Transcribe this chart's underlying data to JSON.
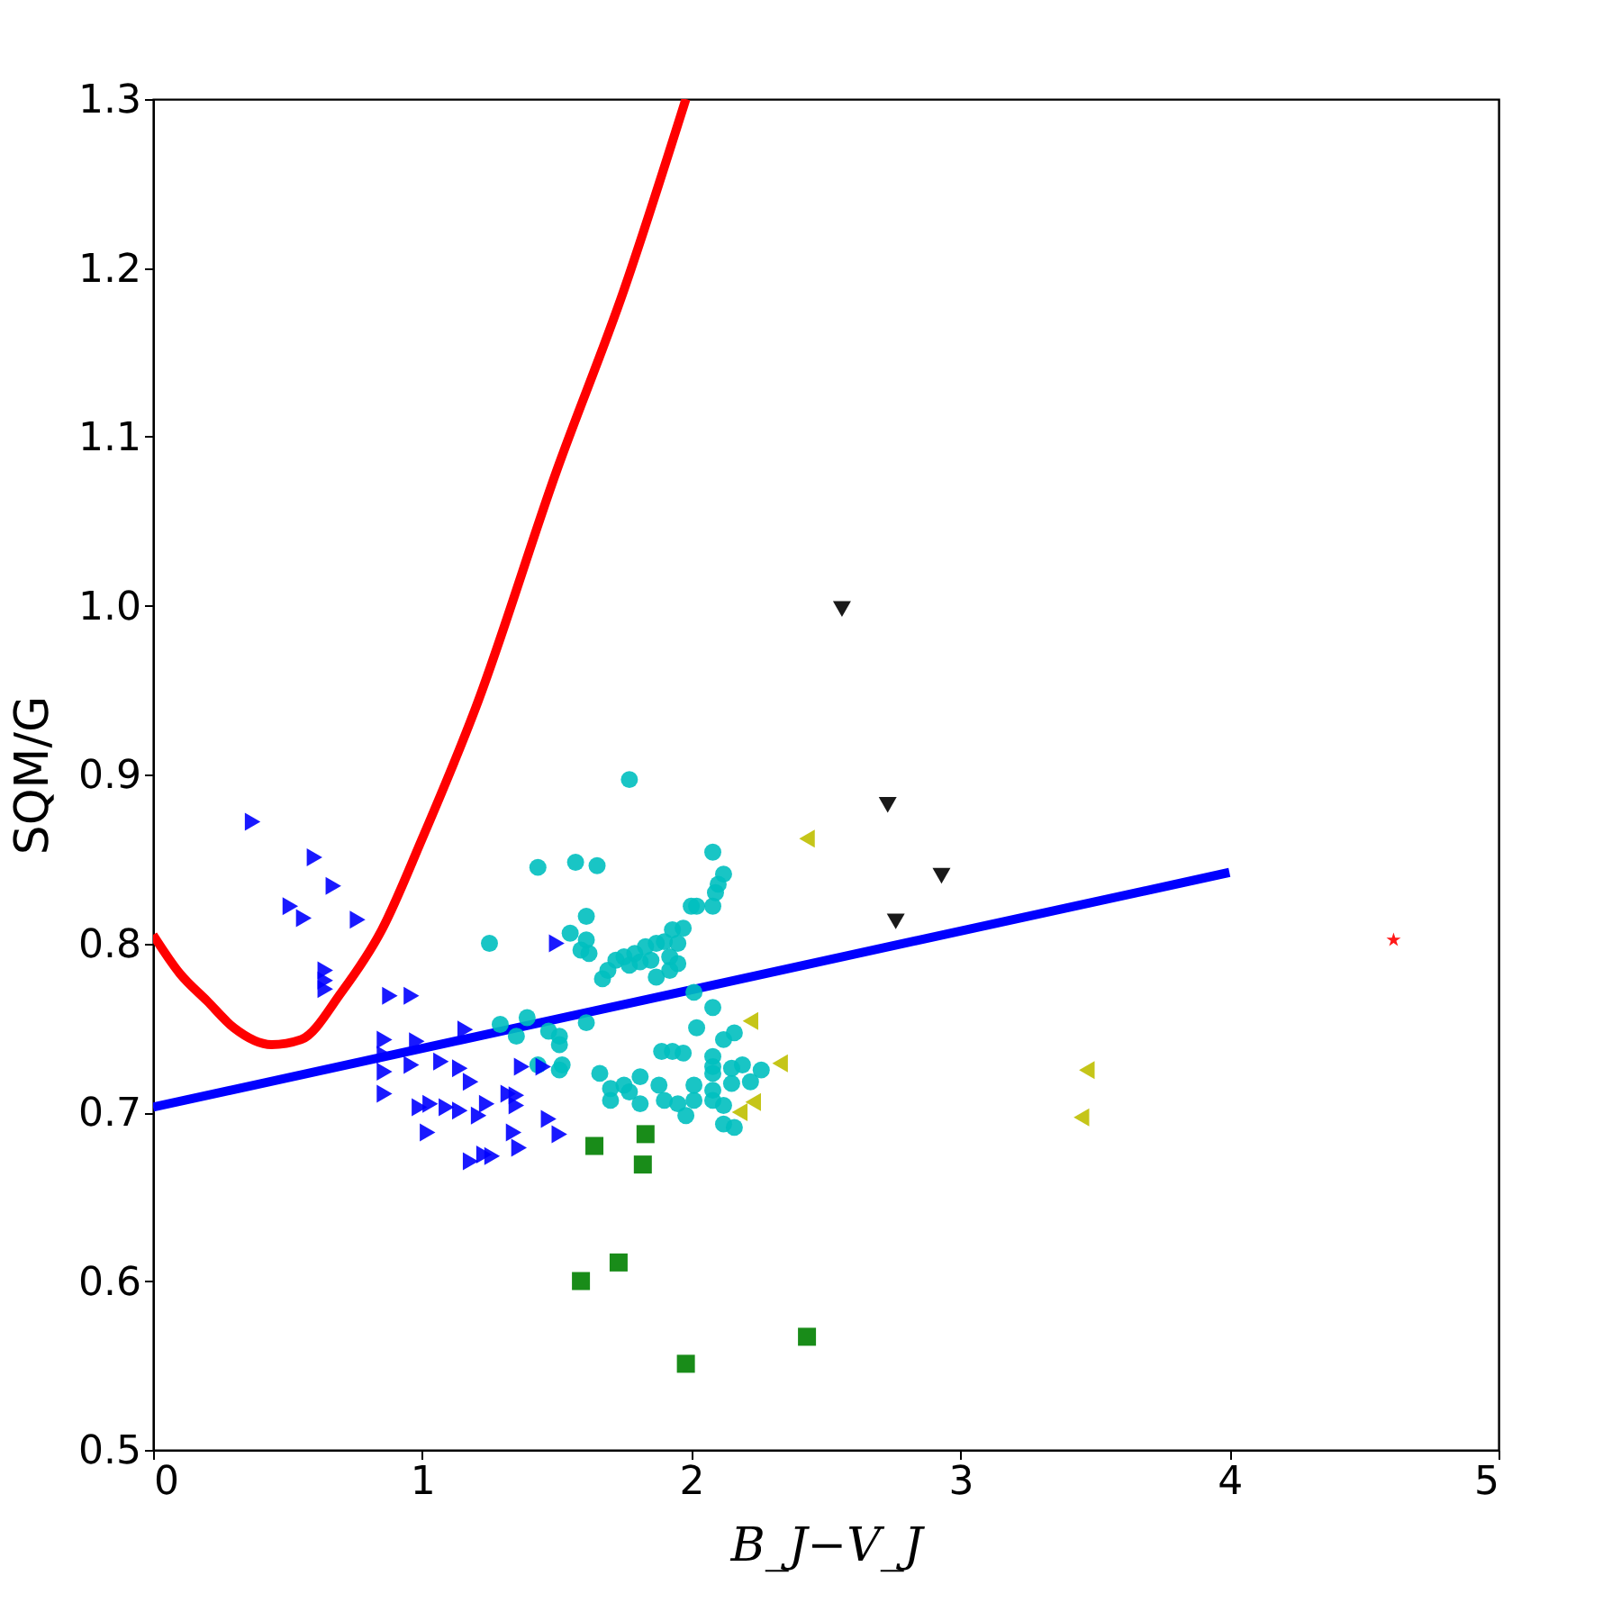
{
  "chart_data": {
    "type": "scatter",
    "xlabel": "B_J−V_J",
    "ylabel": "SQM/G",
    "xlim": [
      0,
      5
    ],
    "xticks": [
      0,
      1,
      2,
      3,
      4,
      5
    ],
    "ylim": [
      0.5,
      1.3
    ],
    "yticks": [
      0.5,
      0.6,
      0.7,
      0.8,
      0.9,
      {
        "value": 1,
        "label": "1.0"
      },
      1.1,
      1.2,
      1.3
    ],
    "grid": false,
    "legend": false,
    "series": [
      {
        "marker": "triangle-right",
        "color": "#0000ff",
        "x": [
          0.37,
          0.6,
          0.67,
          0.51,
          0.56,
          0.76,
          0.64,
          0.64,
          0.64,
          0.88,
          0.96,
          1.5,
          0.86,
          0.98,
          1.16,
          0.86,
          0.96,
          0.86,
          0.86,
          1.07,
          1.14,
          1.18,
          0.99,
          1.03,
          1.09,
          1.14,
          1.21,
          1.24,
          1.32,
          1.35,
          1.35,
          1.02,
          1.34,
          1.36,
          1.47,
          1.51,
          1.18,
          1.23,
          1.26,
          1.37,
          1.45
        ],
        "values": [
          0.872,
          0.851,
          0.834,
          0.822,
          0.815,
          0.814,
          0.784,
          0.778,
          0.773,
          0.769,
          0.769,
          0.8,
          0.743,
          0.742,
          0.749,
          0.734,
          0.728,
          0.724,
          0.711,
          0.73,
          0.726,
          0.718,
          0.703,
          0.705,
          0.703,
          0.701,
          0.698,
          0.705,
          0.711,
          0.71,
          0.704,
          0.688,
          0.688,
          0.679,
          0.696,
          0.687,
          0.671,
          0.675,
          0.674,
          0.727,
          0.727
        ]
      },
      {
        "marker": "circle",
        "color": "#00bfbf",
        "x": [
          1.77,
          1.43,
          1.57,
          1.65,
          2.08,
          2.12,
          2.1,
          2.09,
          2.08,
          2.0,
          2.02,
          1.25,
          1.61,
          1.55,
          1.61,
          1.59,
          1.62,
          1.97,
          1.93,
          1.95,
          1.9,
          1.87,
          1.83,
          1.79,
          1.75,
          1.72,
          1.77,
          1.81,
          1.85,
          1.92,
          1.95,
          1.92,
          1.87,
          1.69,
          1.67,
          2.01,
          2.08,
          2.02,
          1.29,
          1.35,
          1.39,
          1.47,
          1.51,
          1.51,
          1.61,
          1.43,
          1.52,
          1.51,
          1.89,
          1.93,
          1.97,
          2.12,
          2.16,
          2.08,
          2.08,
          2.08,
          2.19,
          2.15,
          2.26,
          2.22,
          2.15,
          2.08,
          1.66,
          1.7,
          1.75,
          1.81,
          1.77,
          1.7,
          1.81,
          1.88,
          1.9,
          1.95,
          1.98,
          2.01,
          2.01,
          2.12,
          2.12,
          2.16,
          2.08
        ],
        "values": [
          0.897,
          0.845,
          0.848,
          0.846,
          0.854,
          0.841,
          0.835,
          0.83,
          0.822,
          0.822,
          0.822,
          0.8,
          0.816,
          0.806,
          0.802,
          0.796,
          0.794,
          0.809,
          0.808,
          0.8,
          0.801,
          0.8,
          0.798,
          0.794,
          0.792,
          0.79,
          0.787,
          0.789,
          0.79,
          0.792,
          0.788,
          0.784,
          0.78,
          0.784,
          0.779,
          0.771,
          0.762,
          0.75,
          0.752,
          0.745,
          0.756,
          0.748,
          0.745,
          0.74,
          0.753,
          0.728,
          0.728,
          0.725,
          0.736,
          0.736,
          0.735,
          0.743,
          0.747,
          0.733,
          0.727,
          0.723,
          0.728,
          0.726,
          0.725,
          0.718,
          0.717,
          0.713,
          0.723,
          0.714,
          0.716,
          0.721,
          0.712,
          0.707,
          0.705,
          0.716,
          0.707,
          0.705,
          0.698,
          0.707,
          0.716,
          0.704,
          0.693,
          0.691,
          0.707
        ]
      },
      {
        "marker": "triangle-left",
        "color": "#bfbf00",
        "x": [
          2.43,
          2.22,
          2.33,
          2.23,
          2.18,
          3.47,
          3.45
        ],
        "values": [
          0.862,
          0.754,
          0.729,
          0.706,
          0.7,
          0.725,
          0.697
        ]
      },
      {
        "marker": "triangle-down",
        "color": "#000000",
        "x": [
          2.56,
          2.73,
          2.93,
          2.76
        ],
        "values": [
          0.998,
          0.882,
          0.84,
          0.813
        ]
      },
      {
        "marker": "square",
        "color": "#008000",
        "x": [
          1.64,
          1.83,
          1.82,
          1.73,
          1.59,
          2.43,
          1.98
        ],
        "values": [
          0.68,
          0.687,
          0.669,
          0.611,
          0.6,
          0.567,
          0.551
        ]
      },
      {
        "marker": "star",
        "color": "#ff0000",
        "x": [
          4.61
        ],
        "values": [
          0.802
        ]
      },
      {
        "type": "line",
        "color": "#0000ff",
        "x": [
          0,
          4
        ],
        "values": [
          0.703,
          0.842
        ]
      },
      {
        "type": "line",
        "color": "#ff0000",
        "x": [
          0,
          0.1,
          0.2,
          0.3,
          0.44,
          0.55,
          0.7,
          0.85,
          1.0,
          1.2,
          1.5,
          1.75,
          1.98
        ],
        "values": [
          0.805,
          0.782,
          0.766,
          0.75,
          0.74,
          0.743,
          0.771,
          0.808,
          0.862,
          0.94,
          1.08,
          1.187,
          1.3
        ]
      }
    ]
  }
}
